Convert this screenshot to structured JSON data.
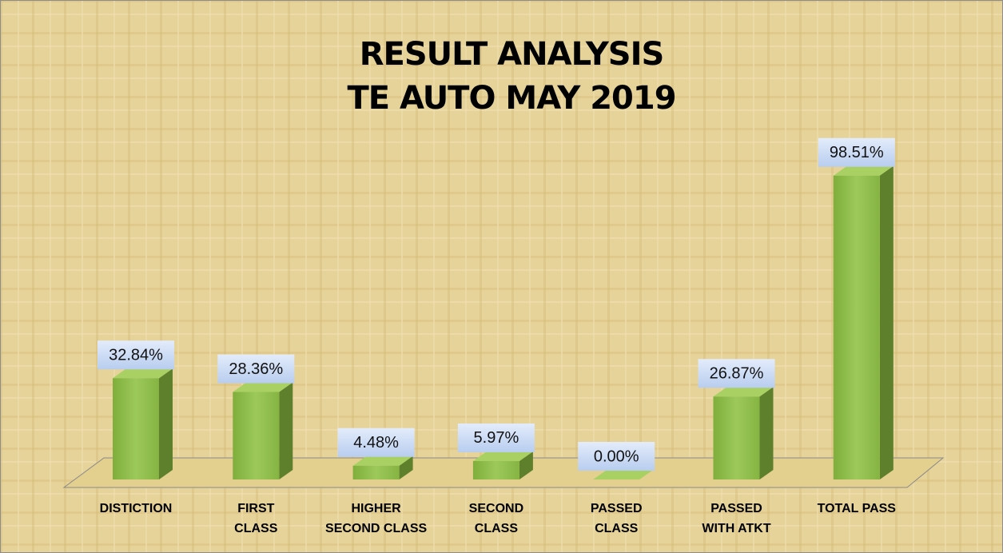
{
  "chart_data": {
    "type": "bar3d",
    "title": "RESULT ANALYSIS",
    "subtitle": "TE AUTO MAY 2019",
    "categories": [
      "DISTICTION",
      "FIRST\nCLASS",
      "HIGHER\nSECOND CLASS",
      "SECOND\nCLASS",
      "PASSED\nCLASS",
      "PASSED\nWITH ATKT",
      "TOTAL PASS"
    ],
    "values": [
      32.84,
      28.36,
      4.48,
      5.97,
      0.0,
      26.87,
      98.51
    ],
    "value_labels": [
      "32.84%",
      "28.36%",
      "4.48%",
      "5.97%",
      "0.00%",
      "26.87%",
      "98.51%"
    ],
    "color": "#8cbb4c"
  }
}
